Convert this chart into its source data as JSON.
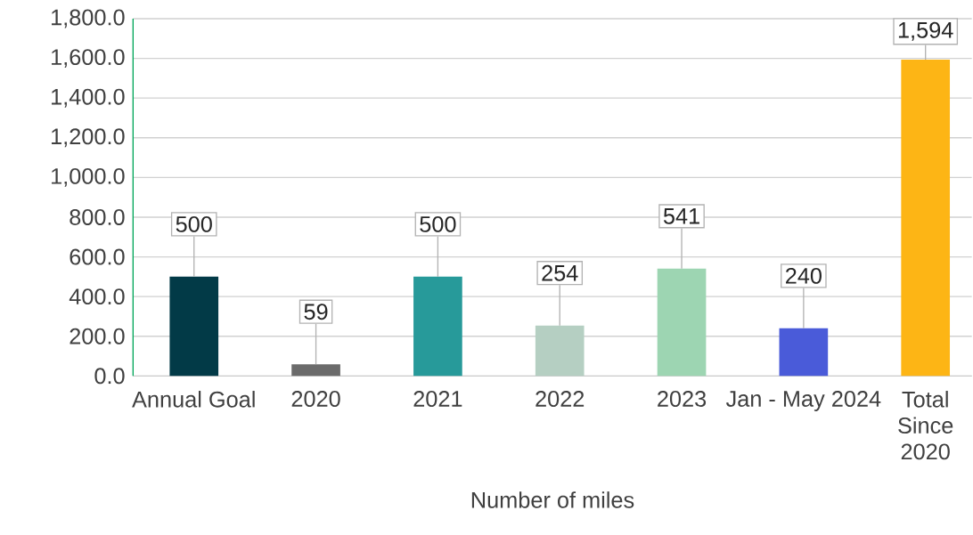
{
  "chart_data": {
    "type": "bar",
    "xlabel": "Number of miles",
    "categories": [
      "Annual Goal",
      "2020",
      "2021",
      "2022",
      "2023",
      "Jan - May 2024",
      "Total Since 2020"
    ],
    "values": [
      500,
      59,
      500,
      254,
      541,
      240,
      1594
    ],
    "colors": [
      "#023a47",
      "#6b6b6b",
      "#279a9a",
      "#b5cfc2",
      "#9dd5b2",
      "#4a5bd9",
      "#fdb515"
    ],
    "value_labels": [
      "500",
      "59",
      "500",
      "254",
      "541",
      "240",
      "1,594"
    ],
    "ylim": [
      0,
      1800
    ],
    "yticks": [
      {
        "value": 0,
        "label": "0.0"
      },
      {
        "value": 200,
        "label": "200.0"
      },
      {
        "value": 400,
        "label": "400.0"
      },
      {
        "value": 600,
        "label": "600.0"
      },
      {
        "value": 800,
        "label": "800.0"
      },
      {
        "value": 1000,
        "label": "1,000.0"
      },
      {
        "value": 1200,
        "label": "1,200.0"
      },
      {
        "value": 1400,
        "label": "1,400.0"
      },
      {
        "value": 1600,
        "label": "1,600.0"
      },
      {
        "value": 1800,
        "label": "1,800.0"
      }
    ],
    "grid": "y"
  }
}
